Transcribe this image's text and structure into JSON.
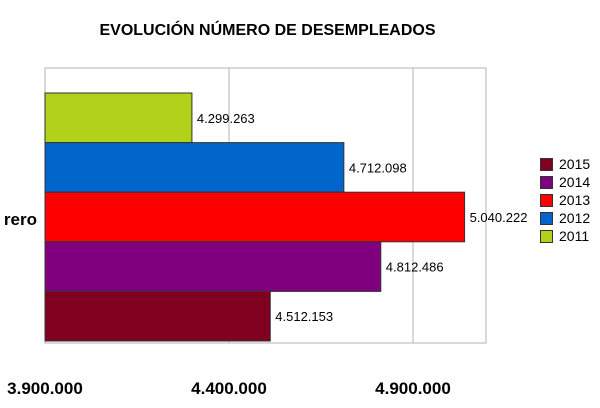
{
  "chart_data": {
    "type": "bar",
    "orientation": "horizontal",
    "title": "EVOLUCIÓN NÚMERO DE DESEMPLEADOS",
    "category": "rero",
    "xlim": [
      3900000,
      5100000
    ],
    "xticks": [
      3900000,
      4400000,
      4900000
    ],
    "xtick_labels": [
      "3.900.000",
      "4.400.000",
      "4.900.000"
    ],
    "grid": true,
    "legend_placement": "right",
    "series": [
      {
        "name": "2011",
        "value": 4299263,
        "label": "4.299.263",
        "color": "#b2d11a"
      },
      {
        "name": "2012",
        "value": 4712098,
        "label": "4.712.098",
        "color": "#0066cc"
      },
      {
        "name": "2013",
        "value": 5040222,
        "label": "5.040.222",
        "color": "#ff0000"
      },
      {
        "name": "2014",
        "value": 4812486,
        "label": "4.812.486",
        "color": "#800080"
      },
      {
        "name": "2015",
        "value": 4512153,
        "label": "4.512.153",
        "color": "#800020"
      }
    ],
    "legend": [
      {
        "name": "2015",
        "color": "#800020"
      },
      {
        "name": "2014",
        "color": "#800080"
      },
      {
        "name": "2013",
        "color": "#ff0000"
      },
      {
        "name": "2012",
        "color": "#0066cc"
      },
      {
        "name": "2011",
        "color": "#b2d11a"
      }
    ]
  }
}
